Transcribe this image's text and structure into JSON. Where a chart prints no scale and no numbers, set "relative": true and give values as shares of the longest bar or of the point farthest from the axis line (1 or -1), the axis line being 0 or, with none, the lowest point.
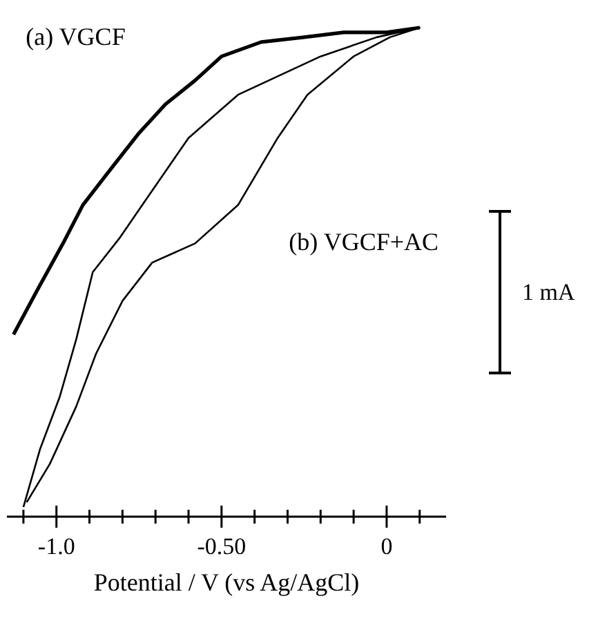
{
  "chart_data": {
    "type": "line",
    "relative": true,
    "xlabel": "Potential / V (vs Ag/AgCl)",
    "xlim": [
      -1.15,
      0.18
    ],
    "xticks": [
      {
        "value": -1.1,
        "label": null
      },
      {
        "value": -1,
        "label": "-1.0"
      },
      {
        "value": -0.9,
        "label": null
      },
      {
        "value": -0.8,
        "label": null
      },
      {
        "value": -0.7,
        "label": null
      },
      {
        "value": -0.6,
        "label": null
      },
      {
        "value": -0.5,
        "label": "-0.50"
      },
      {
        "value": -0.4,
        "label": null
      },
      {
        "value": -0.3,
        "label": null
      },
      {
        "value": -0.2,
        "label": null
      },
      {
        "value": -0.1,
        "label": null
      },
      0,
      {
        "value": 0.1,
        "label": null
      }
    ],
    "tick_labels": "x",
    "legend": false,
    "grid": false,
    "marker": "none",
    "line_style": "solid",
    "series": [
      {
        "name": "(a) VGCF",
        "color": "#000000",
        "x": [
          -1.13,
          -1.06,
          -0.98,
          -0.92,
          -0.83,
          -0.75,
          -0.67,
          -0.58,
          -0.5,
          -0.38,
          -0.25,
          -0.13,
          0,
          0.1
        ],
        "values": [
          0.36,
          0.45,
          0.55,
          0.63,
          0.71,
          0.78,
          0.84,
          0.89,
          0.94,
          0.97,
          0.98,
          0.99,
          0.99,
          1
        ]
      },
      {
        "name": "(b) VGCF+AC",
        "color": "#000000",
        "x": [
          -1.1,
          -1.05,
          -0.99,
          -0.94,
          -0.89,
          -0.81,
          -0.74,
          -0.6,
          -0.45,
          -0.2,
          -0.03,
          0.1,
          0.01,
          -0.1,
          -0.24,
          -0.33,
          -0.45,
          -0.58,
          -0.71,
          -0.8,
          -0.88,
          -0.94,
          -1.02,
          -1.09
        ],
        "values": [
          0,
          0.12,
          0.23,
          0.35,
          0.49,
          0.56,
          0.63,
          0.77,
          0.86,
          0.94,
          0.98,
          1,
          0.98,
          0.94,
          0.86,
          0.77,
          0.63,
          0.55,
          0.51,
          0.43,
          0.32,
          0.21,
          0.09,
          0.01
        ]
      }
    ],
    "annotations": [
      "1 mA"
    ]
  }
}
